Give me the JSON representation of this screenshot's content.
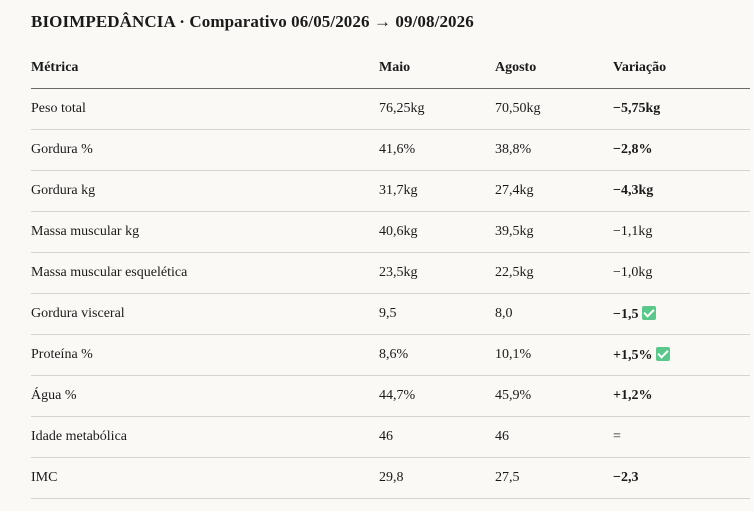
{
  "title": "BIOIMPEDÂNCIA · Comparativo 06/05/2026 → 09/08/2026",
  "columns": {
    "metric": "Métrica",
    "may": "Maio",
    "aug": "Agosto",
    "variation": "Variação"
  },
  "rows": [
    {
      "metric": "Peso total",
      "may": "76,25kg",
      "aug": "70,50kg",
      "variation": "−5,75kg",
      "bold": true,
      "check": false
    },
    {
      "metric": "Gordura %",
      "may": "41,6%",
      "aug": "38,8%",
      "variation": "−2,8%",
      "bold": true,
      "check": false
    },
    {
      "metric": "Gordura kg",
      "may": "31,7kg",
      "aug": "27,4kg",
      "variation": "−4,3kg",
      "bold": true,
      "check": false
    },
    {
      "metric": "Massa muscular kg",
      "may": "40,6kg",
      "aug": "39,5kg",
      "variation": "−1,1kg",
      "bold": false,
      "check": false
    },
    {
      "metric": "Massa muscular esquelética",
      "may": "23,5kg",
      "aug": "22,5kg",
      "variation": "−1,0kg",
      "bold": false,
      "check": false
    },
    {
      "metric": "Gordura visceral",
      "may": "9,5",
      "aug": "8,0",
      "variation": "−1,5",
      "bold": true,
      "check": true
    },
    {
      "metric": "Proteína %",
      "may": "8,6%",
      "aug": "10,1%",
      "variation": "+1,5%",
      "bold": true,
      "check": true
    },
    {
      "metric": "Água %",
      "may": "44,7%",
      "aug": "45,9%",
      "variation": "+1,2%",
      "bold": true,
      "check": false
    },
    {
      "metric": "Idade metabólica",
      "may": "46",
      "aug": "46",
      "variation": "=",
      "bold": false,
      "check": false
    },
    {
      "metric": "IMC",
      "may": "29,8",
      "aug": "27,5",
      "variation": "−2,3",
      "bold": true,
      "check": false
    }
  ],
  "icons": {
    "check": "check-mark-icon",
    "check_color": "#5ac88a"
  }
}
